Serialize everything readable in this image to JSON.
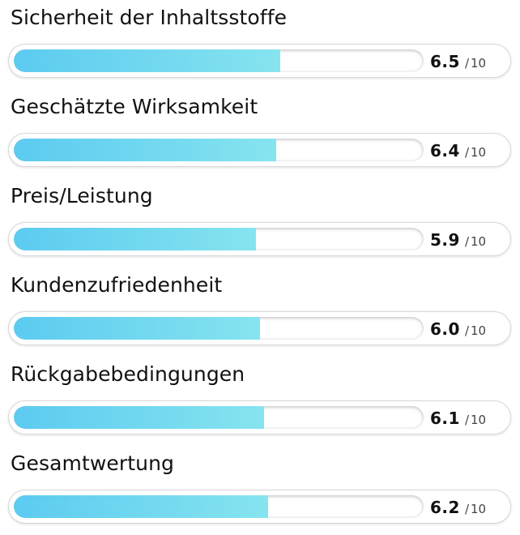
{
  "ratings": [
    {
      "label": "Sicherheit der Inhaltsstoffe",
      "value": "6.5",
      "sep": "/",
      "max": "10",
      "fraction": 0.65
    },
    {
      "label": "Geschätzte Wirksamkeit",
      "value": "6.4",
      "sep": "/",
      "max": "10",
      "fraction": 0.64
    },
    {
      "label": "Preis/Leistung",
      "value": "5.9",
      "sep": "/",
      "max": "10",
      "fraction": 0.59
    },
    {
      "label": "Kundenzufriedenheit",
      "value": "6.0",
      "sep": "/",
      "max": "10",
      "fraction": 0.6
    },
    {
      "label": "Rückgabebedingungen",
      "value": "6.1",
      "sep": "/",
      "max": "10",
      "fraction": 0.61
    },
    {
      "label": "Gesamtwertung",
      "value": "6.2",
      "sep": "/",
      "max": "10",
      "fraction": 0.62
    }
  ],
  "colors": {
    "fill_start": "#5ccbf0",
    "fill_end": "#86e4ef",
    "text": "#111111"
  }
}
